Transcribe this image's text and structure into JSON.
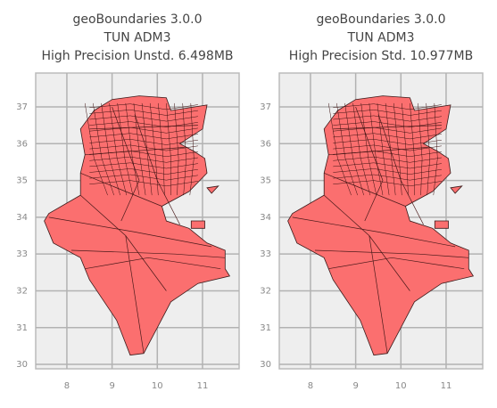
{
  "chart_data": [
    {
      "type": "map",
      "title": [
        "geoBoundaries 3.0.0",
        "TUN ADM3",
        "High Precision Unstd. 6.498MB"
      ],
      "xlim": [
        7.31,
        11.81
      ],
      "ylim": [
        29.88,
        37.92
      ],
      "xticks": [
        8,
        9,
        10,
        11
      ],
      "yticks": [
        30,
        31,
        32,
        33,
        34,
        35,
        36,
        37
      ],
      "grid": true,
      "color": "#fb6f6f"
    },
    {
      "type": "map",
      "title": [
        "geoBoundaries 3.0.0",
        "TUN ADM3",
        "High Precision Std. 10.977MB"
      ],
      "xlim": [
        7.31,
        11.81
      ],
      "ylim": [
        29.88,
        37.92
      ],
      "xticks": [
        8,
        9,
        10,
        11
      ],
      "yticks": [
        30,
        31,
        32,
        33,
        34,
        35,
        36,
        37
      ],
      "grid": true,
      "color": "#fb6f6f"
    }
  ]
}
